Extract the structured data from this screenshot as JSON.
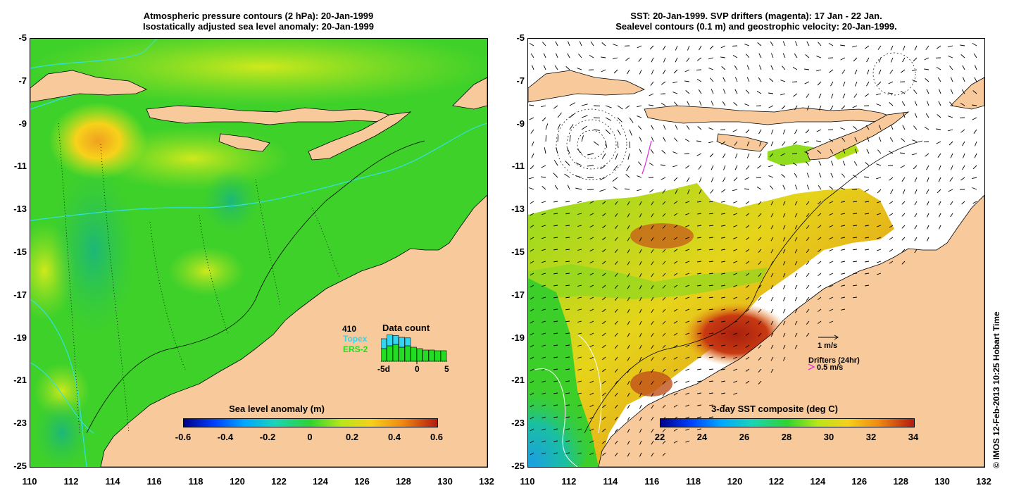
{
  "left_panel": {
    "title_line1": "Atmospheric pressure contours (2 hPa): 20-Jan-1999",
    "title_line2": "Isostatically adjusted sea level anomaly: 20-Jan-1999",
    "colorbar": {
      "title": "Sea level anomaly (m)",
      "ticks": [
        "-0.6",
        "-0.4",
        "-0.2",
        "0",
        "0.2",
        "0.4",
        "0.6"
      ]
    },
    "data_count": {
      "total": "410",
      "title": "Data count",
      "series": [
        "Topex",
        "ERS-2"
      ],
      "axis_labels": [
        "-5d",
        "0",
        "5"
      ],
      "topex_color": "#33d6f0",
      "ers_color": "#22dd22"
    }
  },
  "right_panel": {
    "title_line1": "SST: 20-Jan-1999. SVP drifters (magenta): 17 Jan - 22 Jan.",
    "title_line2": "Sealevel contours (0.1 m) and geostrophic velocity: 20-Jan-1999.",
    "colorbar": {
      "title": "3-day SST composite (deg C)",
      "ticks": [
        "22",
        "24",
        "26",
        "28",
        "30",
        "32",
        "34"
      ]
    },
    "velocity_legend": "1 m/s",
    "drifter_legend_title": "Drifters (24hr)",
    "drifter_legend_value": "0.5 m/s",
    "drifter_color": "#dd33dd"
  },
  "axes": {
    "lon_ticks": [
      "110",
      "112",
      "114",
      "116",
      "118",
      "120",
      "122",
      "124",
      "126",
      "128",
      "130",
      "132"
    ],
    "lat_ticks": [
      "-5",
      "-7",
      "-9",
      "-11",
      "-13",
      "-15",
      "-17",
      "-19",
      "-21",
      "-23",
      "-25"
    ],
    "lon_range": [
      110,
      132
    ],
    "lat_range": [
      -25,
      -5
    ]
  },
  "colors": {
    "land": "#f8c99a",
    "ocean_green": "#39cc2c",
    "bathymetry_line": "#33e0e0"
  },
  "credit": "© IMOS 12-Feb-2013 10:25 Hobart Time"
}
